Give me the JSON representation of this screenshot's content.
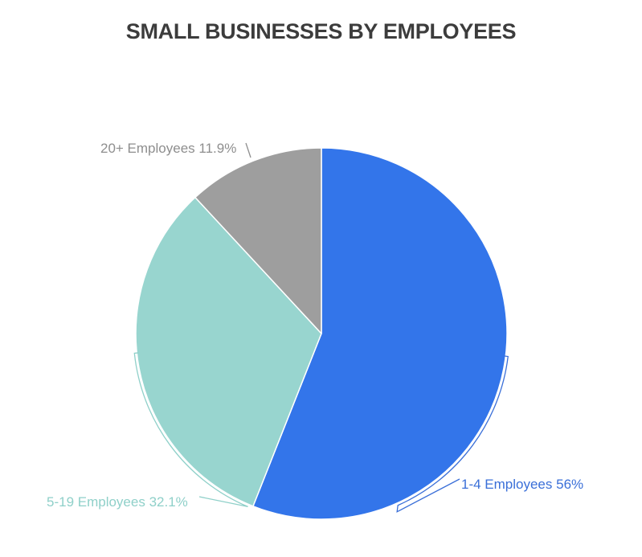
{
  "chart_data": {
    "type": "pie",
    "title": "SMALL BUSINESSES BY EMPLOYEES",
    "slices": [
      {
        "label": "1-4 Employees",
        "value": 56,
        "display": "1-4 Employees 56%",
        "color": "#3375ea"
      },
      {
        "label": "5-19 Employees",
        "value": 32.1,
        "display": "5-19 Employees 32.1%",
        "color": "#98d5cf"
      },
      {
        "label": "20+ Employees",
        "value": 11.9,
        "display": "20+ Employees 11.9%",
        "color": "#9e9e9e"
      }
    ],
    "start_angle": "12 o'clock",
    "direction": "clockwise",
    "label_colors": [
      "#3a6fd8",
      "#8fd0c9",
      "#8e8e8e"
    ]
  }
}
